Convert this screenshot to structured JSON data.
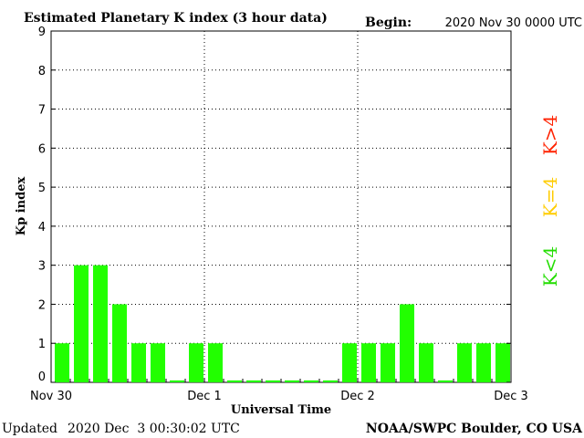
{
  "header": {
    "title": "Estimated Planetary K index (3 hour data)",
    "begin_label": "Begin:",
    "begin_value": "2020 Nov 30 0000 UTC"
  },
  "footer": {
    "updated_label": "Updated",
    "updated_value": "2020 Dec  3 00:30:02 UTC",
    "credit": "NOAA/SWPC Boulder, CO USA"
  },
  "legend": [
    {
      "text": "K>4",
      "color": "#ff2200"
    },
    {
      "text": "K=4",
      "color": "#ffcc00"
    },
    {
      "text": "K<4",
      "color": "#22dd00"
    }
  ],
  "chart_data": {
    "type": "bar",
    "title": "Estimated Planetary K index (3 hour data)",
    "xlabel": "Universal Time",
    "ylabel": "Kp index",
    "ylim": [
      0,
      9
    ],
    "yticks": [
      0,
      1,
      2,
      3,
      4,
      5,
      6,
      7,
      8,
      9
    ],
    "xticks": [
      "Nov 30",
      "Dec 1",
      "Dec 2",
      "Dec 3"
    ],
    "grid": true,
    "bar_color": "#22ff00",
    "values": [
      1,
      3,
      3,
      2,
      1,
      1,
      0.05,
      1,
      1,
      0.05,
      0.05,
      0.05,
      0.05,
      0.05,
      0.05,
      1,
      1,
      1,
      2,
      1,
      0.05,
      1,
      1,
      1
    ]
  }
}
